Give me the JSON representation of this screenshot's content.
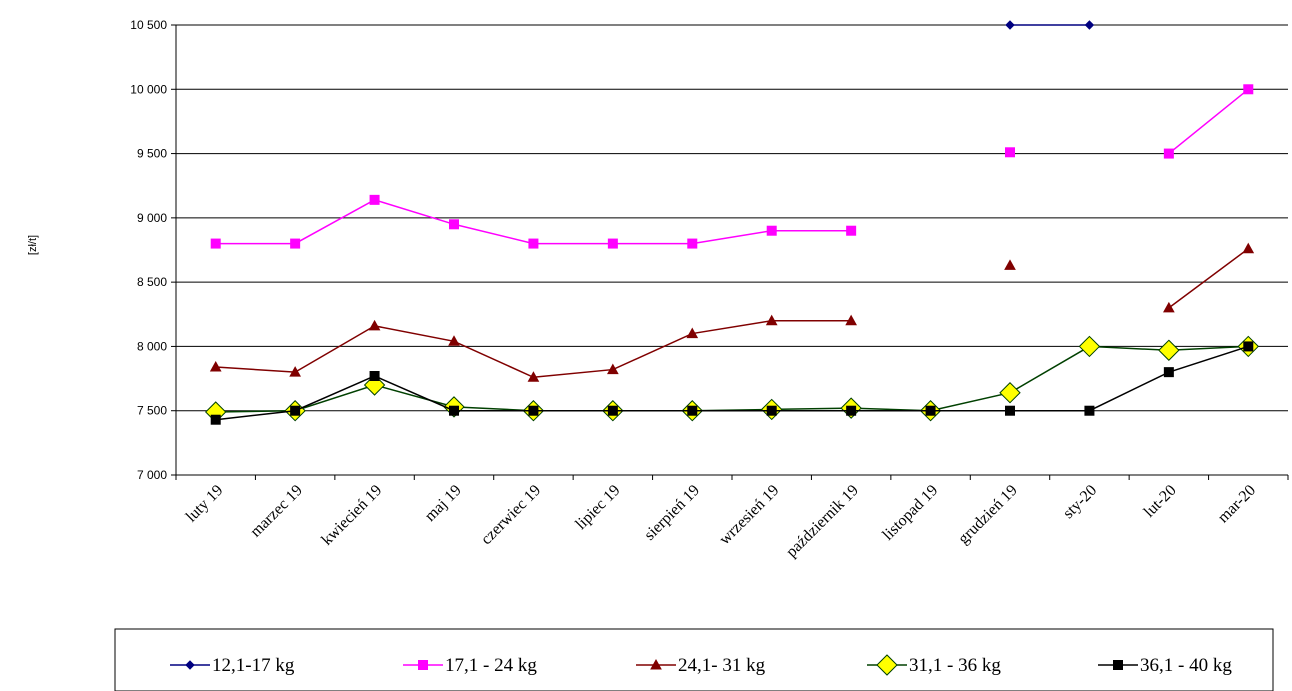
{
  "chart_data": {
    "type": "line",
    "title": "",
    "xlabel": "",
    "ylabel": "[zł/t]",
    "ylim": [
      7000,
      10500
    ],
    "yticks": [
      7000,
      7500,
      8000,
      8500,
      9000,
      9500,
      10000,
      10500
    ],
    "ytick_labels": [
      "7 000",
      "7 500",
      "8 000",
      "8 500",
      "9 000",
      "9 500",
      "10 000",
      "10 500"
    ],
    "grid": "horizontal",
    "legend_position": "bottom",
    "categories": [
      "luty 19",
      "marzec 19",
      "kwiecień 19",
      "maj 19",
      "czerwiec 19",
      "lipiec 19",
      "sierpień 19",
      "wrzesień 19",
      "październik 19",
      "listopad 19",
      "grudzień 19",
      "sty-20",
      "lut-20",
      "mar-20"
    ],
    "series": [
      {
        "name": "12,1-17 kg",
        "color": "#000080",
        "marker": "diamond-small",
        "values": [
          null,
          null,
          null,
          null,
          null,
          null,
          null,
          null,
          null,
          null,
          10500,
          10500,
          null,
          null
        ]
      },
      {
        "name": "17,1 - 24 kg",
        "color": "#ff00ff",
        "marker": "square",
        "values": [
          8800,
          8800,
          9140,
          8950,
          8800,
          8800,
          8800,
          8900,
          8900,
          null,
          9510,
          null,
          9500,
          10000
        ]
      },
      {
        "name": "24,1- 31 kg",
        "color": "#800000",
        "marker": "triangle",
        "values": [
          7840,
          7800,
          8160,
          8040,
          7760,
          7820,
          8100,
          8200,
          8200,
          null,
          8630,
          null,
          8300,
          8760
        ]
      },
      {
        "name": "31,1 - 36 kg",
        "color": "#ffff00",
        "stroke": "#004000",
        "marker": "diamond-large",
        "values": [
          7490,
          7500,
          7700,
          7530,
          7500,
          7500,
          7500,
          7510,
          7520,
          7500,
          7640,
          8000,
          7970,
          8000
        ]
      },
      {
        "name": "36,1 - 40 kg",
        "color": "#000000",
        "marker": "square",
        "values": [
          7430,
          7500,
          7770,
          7500,
          7500,
          7500,
          7500,
          7500,
          7500,
          7500,
          7500,
          7500,
          7800,
          8000
        ]
      }
    ]
  }
}
